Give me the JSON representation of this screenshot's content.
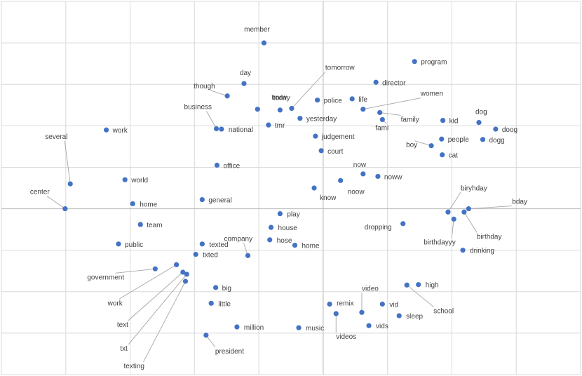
{
  "chart_data": {
    "type": "scatter",
    "title": "",
    "xlabel": "",
    "ylabel": "",
    "xlim": [
      -5,
      4
    ],
    "ylim": [
      -4,
      5
    ],
    "grid": true,
    "x_gridlines": [
      -4,
      -3,
      -2,
      -1,
      0,
      1,
      2,
      3
    ],
    "y_gridlines": [
      -4,
      -3,
      -2,
      -1,
      0,
      1,
      2,
      3,
      4
    ],
    "marker_color": "#4472c4",
    "points": [
      {
        "label": "member",
        "x": -0.92,
        "y": 4.0
      },
      {
        "label": "day",
        "x": -1.23,
        "y": 3.02
      },
      {
        "label": "today",
        "x": -1.02,
        "y": 2.4
      },
      {
        "label": "though",
        "x": -1.49,
        "y": 2.72
      },
      {
        "label": "tomorrow",
        "x": -0.49,
        "y": 2.42
      },
      {
        "label": "tmrw",
        "x": -0.67,
        "y": 2.38
      },
      {
        "label": "police",
        "x": -0.09,
        "y": 2.62
      },
      {
        "label": "life",
        "x": 0.45,
        "y": 2.65
      },
      {
        "label": "director",
        "x": 0.82,
        "y": 3.05
      },
      {
        "label": "program",
        "x": 1.42,
        "y": 3.55
      },
      {
        "label": "women",
        "x": 0.62,
        "y": 2.4
      },
      {
        "label": "family",
        "x": 0.88,
        "y": 2.32
      },
      {
        "label": "fami",
        "x": 0.92,
        "y": 2.15
      },
      {
        "label": "yesterday",
        "x": -0.36,
        "y": 2.18
      },
      {
        "label": "tmr",
        "x": -0.85,
        "y": 2.02
      },
      {
        "label": "business",
        "x": -1.66,
        "y": 1.93
      },
      {
        "label": "national",
        "x": -1.58,
        "y": 1.92
      },
      {
        "label": "work",
        "x": -3.37,
        "y": 1.9
      },
      {
        "label": "judgement",
        "x": -0.12,
        "y": 1.75
      },
      {
        "label": "court",
        "x": -0.03,
        "y": 1.4
      },
      {
        "label": "kid",
        "x": 1.86,
        "y": 2.13
      },
      {
        "label": "dog",
        "x": 2.42,
        "y": 2.08
      },
      {
        "label": "doog",
        "x": 2.68,
        "y": 1.92
      },
      {
        "label": "dogg",
        "x": 2.48,
        "y": 1.67
      },
      {
        "label": "people",
        "x": 1.84,
        "y": 1.68
      },
      {
        "label": "boy",
        "x": 1.68,
        "y": 1.52
      },
      {
        "label": "cat",
        "x": 1.85,
        "y": 1.3
      },
      {
        "label": "several",
        "x": -3.93,
        "y": 0.6
      },
      {
        "label": "world",
        "x": -3.08,
        "y": 0.7
      },
      {
        "label": "office",
        "x": -1.65,
        "y": 1.05
      },
      {
        "label": "now",
        "x": 0.62,
        "y": 0.84
      },
      {
        "label": "noww",
        "x": 0.85,
        "y": 0.78
      },
      {
        "label": "noow",
        "x": 0.27,
        "y": 0.68
      },
      {
        "label": "know",
        "x": -0.14,
        "y": 0.5
      },
      {
        "label": "center",
        "x": -4.01,
        "y": 0.0
      },
      {
        "label": "home",
        "x": -2.96,
        "y": 0.12
      },
      {
        "label": "general",
        "x": -1.88,
        "y": 0.22
      },
      {
        "label": "biryhday",
        "x": 1.94,
        "y": -0.08
      },
      {
        "label": "bday",
        "x": 2.26,
        "y": 0.0
      },
      {
        "label": "birthday",
        "x": 2.19,
        "y": -0.08
      },
      {
        "label": "birthdayyy",
        "x": 2.03,
        "y": -0.25
      },
      {
        "label": "dropping",
        "x": 1.24,
        "y": -0.36
      },
      {
        "label": "drinking",
        "x": 2.17,
        "y": -1.0
      },
      {
        "label": "play",
        "x": -0.67,
        "y": -0.12
      },
      {
        "label": "team",
        "x": -2.84,
        "y": -0.38
      },
      {
        "label": "house",
        "x": -0.81,
        "y": -0.45
      },
      {
        "label": "company",
        "x": -1.17,
        "y": -1.13
      },
      {
        "label": "hose",
        "x": -0.83,
        "y": -0.75
      },
      {
        "label": "home",
        "x": -0.44,
        "y": -0.88
      },
      {
        "label": "public",
        "x": -3.18,
        "y": -0.85
      },
      {
        "label": "texted",
        "x": -1.88,
        "y": -0.85
      },
      {
        "label": "txted",
        "x": -1.98,
        "y": -1.1
      },
      {
        "label": "government",
        "x": -2.61,
        "y": -1.45
      },
      {
        "label": "work",
        "x": -2.28,
        "y": -1.35
      },
      {
        "label": "text",
        "x": -2.18,
        "y": -1.53
      },
      {
        "label": "txt",
        "x": -2.12,
        "y": -1.58
      },
      {
        "label": "texting",
        "x": -2.14,
        "y": -1.75
      },
      {
        "label": "big",
        "x": -1.67,
        "y": -1.9
      },
      {
        "label": "little",
        "x": -1.74,
        "y": -2.28
      },
      {
        "label": "million",
        "x": -1.34,
        "y": -2.85
      },
      {
        "label": "music",
        "x": -0.38,
        "y": -2.87
      },
      {
        "label": "president",
        "x": -1.82,
        "y": -3.05
      },
      {
        "label": "video",
        "x": 0.6,
        "y": -2.5
      },
      {
        "label": "remix",
        "x": 0.1,
        "y": -2.3
      },
      {
        "label": "vid",
        "x": 0.92,
        "y": -2.3
      },
      {
        "label": "videos",
        "x": 0.2,
        "y": -2.53
      },
      {
        "label": "vids",
        "x": 0.71,
        "y": -2.82
      },
      {
        "label": "sleep",
        "x": 1.18,
        "y": -2.58
      },
      {
        "label": "high",
        "x": 1.48,
        "y": -1.83
      },
      {
        "label": "school",
        "x": 1.3,
        "y": -1.84
      }
    ]
  }
}
